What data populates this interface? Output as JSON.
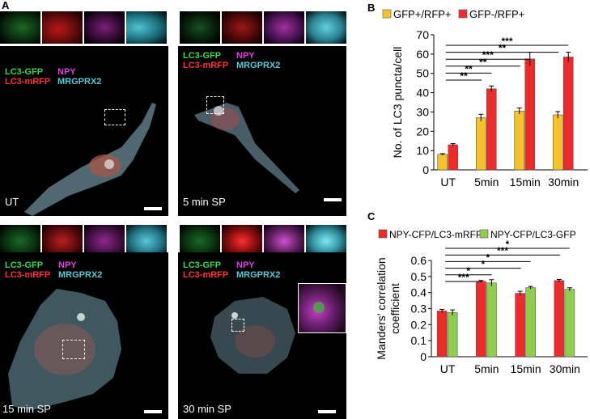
{
  "panel_a": {
    "label": "A",
    "channel_labels": {
      "lc3_gfp": "LC3-GFP",
      "lc3_mrfp": "LC3-mRFP",
      "npy": "NPY",
      "mrgprx2": "MRGPRX2"
    },
    "channel_colors": {
      "green": "#39d94a",
      "red": "#ff3030",
      "magenta": "#e040e0",
      "cyan": "#55d8e8",
      "label_cyan": "#5bc8d8"
    },
    "arrow_colors": {
      "yellow": "#f0e020",
      "white": "#ffffff"
    },
    "conditions": [
      "UT",
      "5 min SP",
      "15 min SP",
      "30 min SP"
    ]
  },
  "panel_b": {
    "label": "B",
    "chart_data": {
      "type": "bar",
      "categories": [
        "UT",
        "5min",
        "15min",
        "30min"
      ],
      "series": [
        {
          "name": "GFP+/RFP+",
          "color": "#f5c22a",
          "values": [
            8,
            27,
            30.5,
            28.5
          ],
          "errors": [
            0.4,
            1.8,
            1.6,
            1.7
          ]
        },
        {
          "name": "GFP-/RFP+",
          "color": "#ee2a2a",
          "values": [
            13,
            42,
            57.5,
            58.5
          ],
          "errors": [
            0.6,
            1.5,
            3.5,
            2.5
          ]
        }
      ],
      "xlabel": "",
      "ylabel": "No. of LC3 puncta/cell",
      "ylim": [
        0,
        70
      ],
      "yticks": [
        0,
        10,
        20,
        30,
        40,
        50,
        60,
        70
      ],
      "significance": [
        "**",
        "**",
        "**",
        "***",
        "**",
        "***"
      ]
    }
  },
  "panel_c": {
    "label": "C",
    "chart_data": {
      "type": "bar",
      "categories": [
        "UT",
        "5min",
        "15min",
        "30min"
      ],
      "series": [
        {
          "name": "NPY-CFP/LC3-mRFP",
          "color": "#ee2a2a",
          "values": [
            0.285,
            0.47,
            0.395,
            0.475
          ],
          "errors": [
            0.01,
            0.005,
            0.013,
            0.007
          ]
        },
        {
          "name": "NPY-CFP/LC3-GFP",
          "color": "#8fce4a",
          "values": [
            0.275,
            0.46,
            0.43,
            0.42
          ],
          "errors": [
            0.017,
            0.02,
            0.008,
            0.01
          ]
        }
      ],
      "xlabel": "",
      "ylabel": "Manders' correlation coefficient",
      "ylabel_lines": [
        "Manders' correlation",
        "coefficient"
      ],
      "ylim": [
        0,
        0.6
      ],
      "yticks": [
        "0",
        "0.1",
        "0.2",
        "0.3",
        "0.4",
        "0.5",
        "0.6"
      ],
      "significance": [
        "***",
        "*",
        "*",
        "*",
        "***",
        "*"
      ]
    }
  }
}
